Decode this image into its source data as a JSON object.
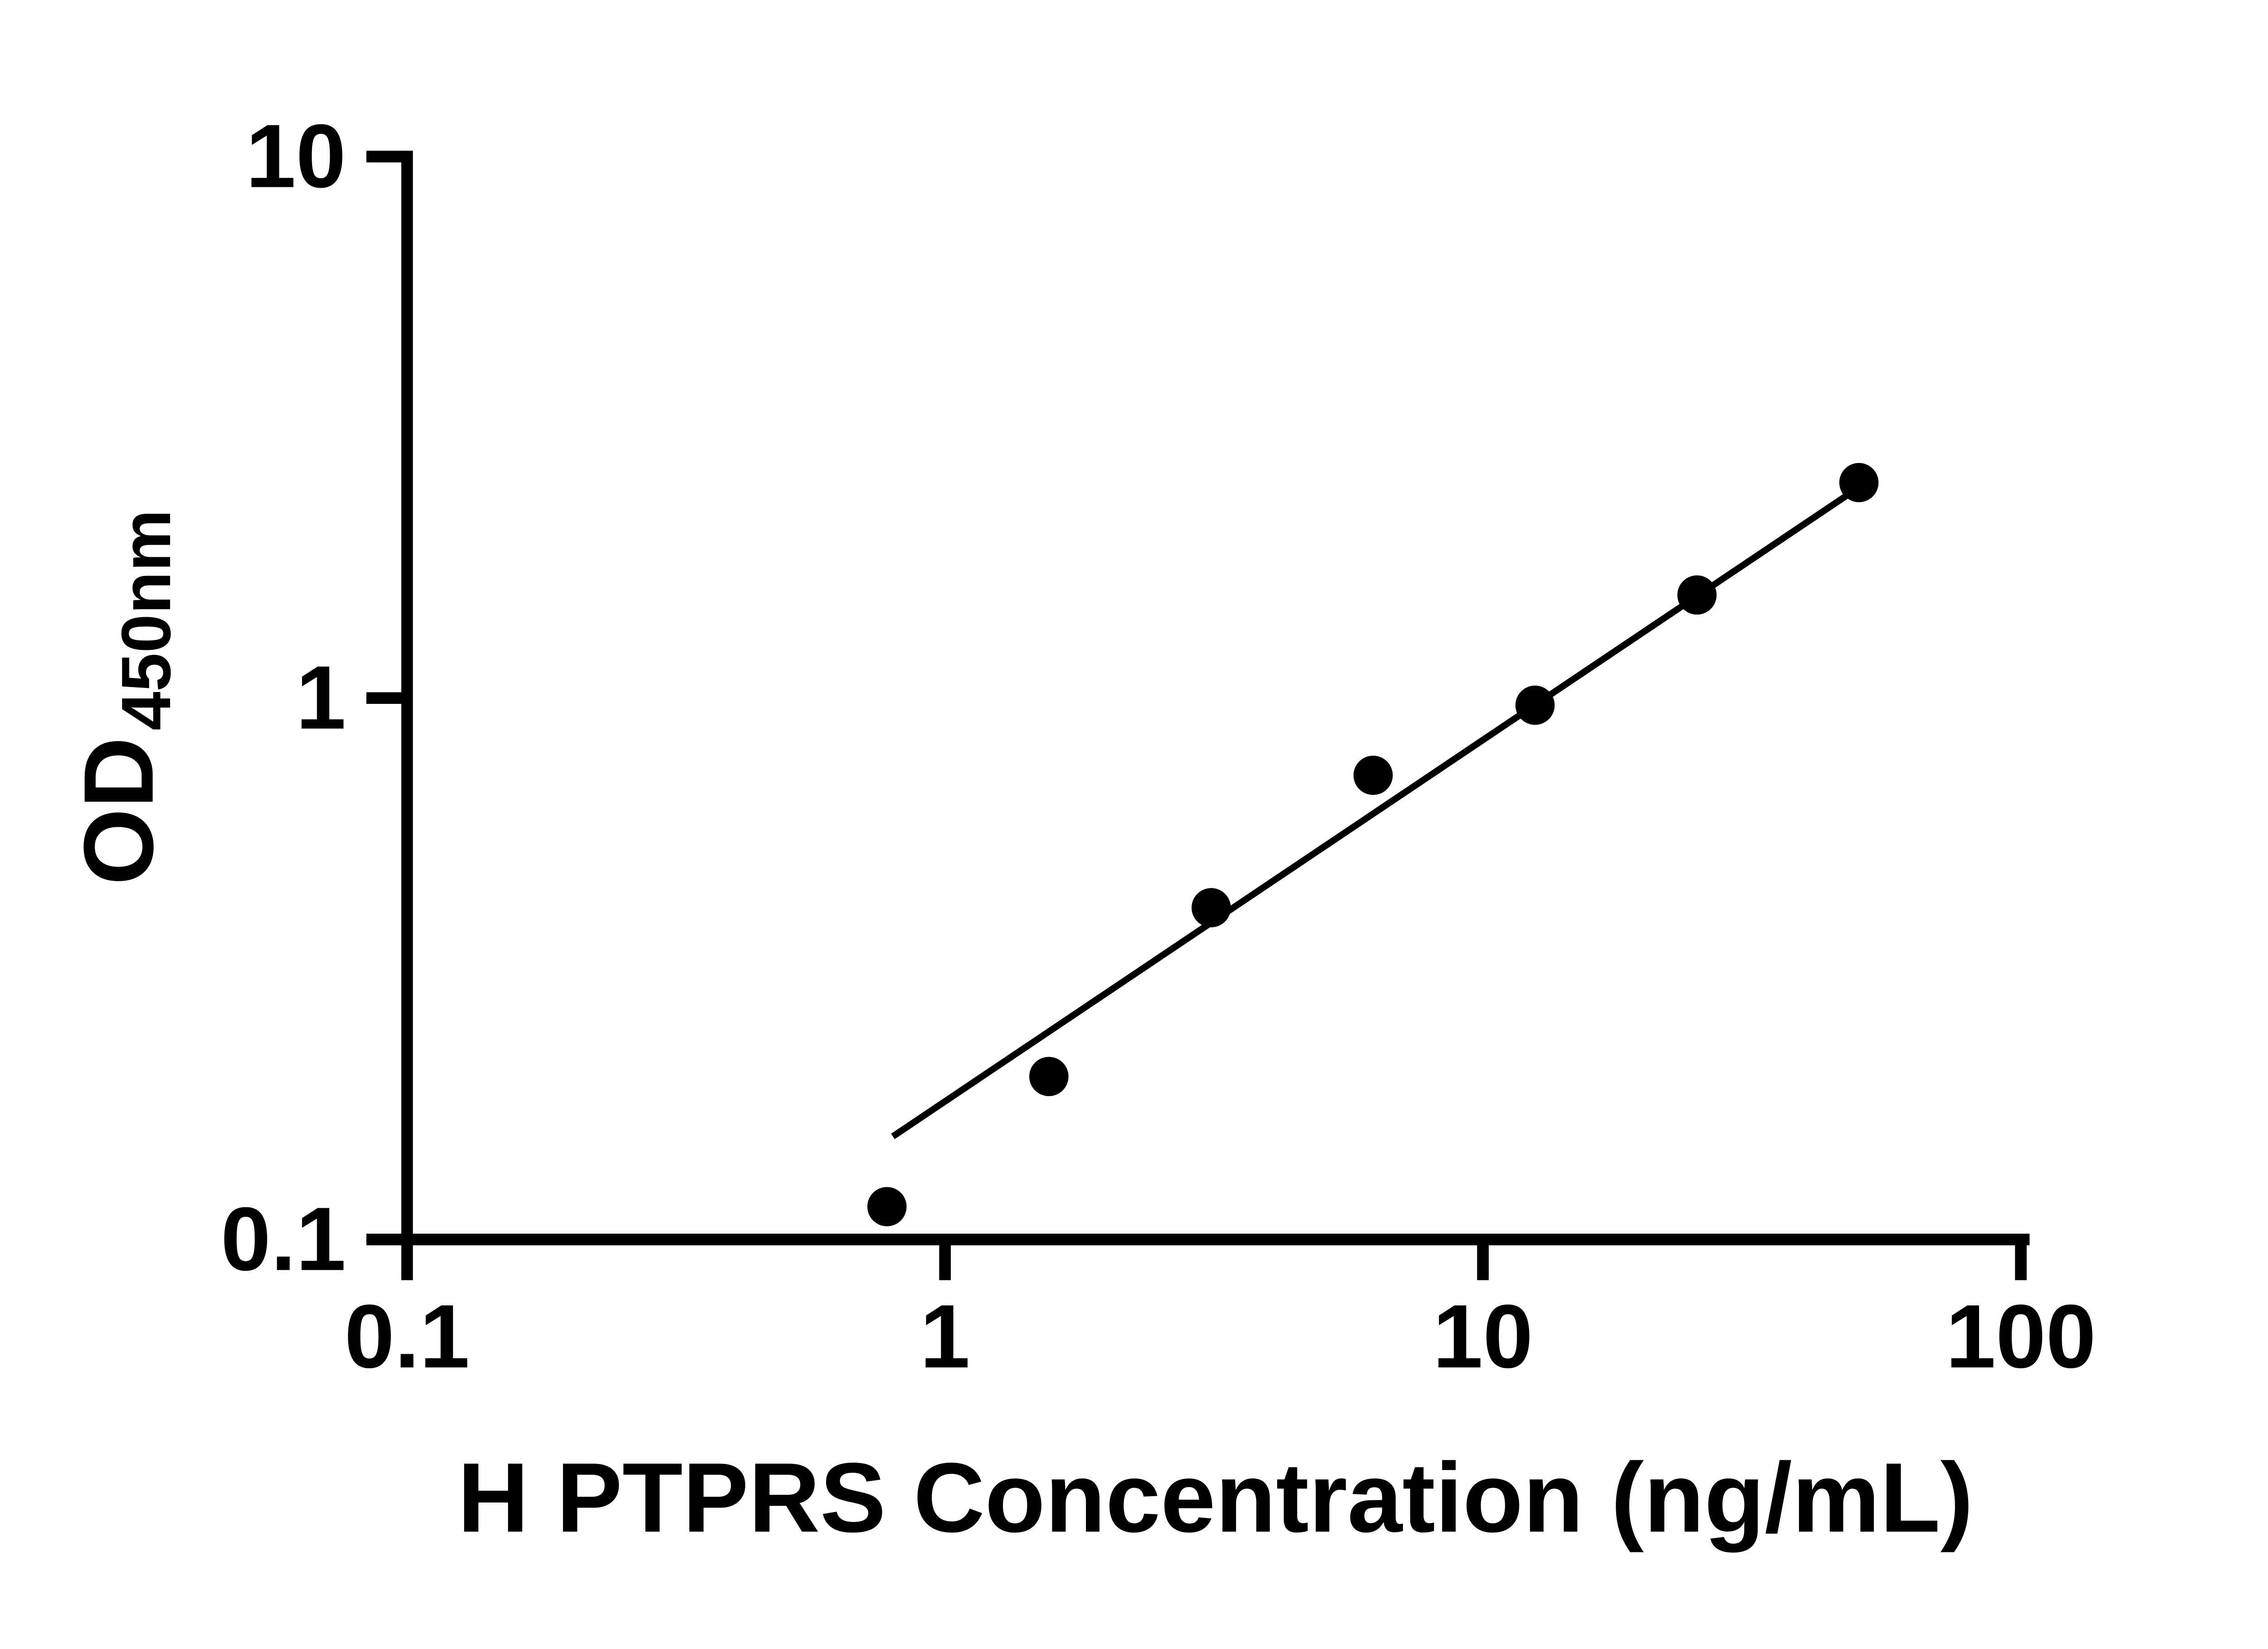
{
  "chart_data": {
    "type": "scatter",
    "title": "",
    "xlabel": "H PTPRS Concentration (ng/mL)",
    "ylabel_main": "OD",
    "ylabel_sub": "450nm",
    "xscale": "log",
    "yscale": "log",
    "xlim": [
      0.1,
      100
    ],
    "ylim": [
      0.1,
      10
    ],
    "x_ticks": [
      0.1,
      1,
      10,
      100
    ],
    "x_tick_labels": [
      "0.1",
      "1",
      "10",
      "100"
    ],
    "y_ticks": [
      0.1,
      1,
      10
    ],
    "y_tick_labels": [
      "0.1",
      "1",
      "10"
    ],
    "grid": "off",
    "legend": "none",
    "marker_color": "#000000",
    "line_color": "#000000",
    "points": [
      {
        "x": 0.78,
        "y": 0.115
      },
      {
        "x": 1.56,
        "y": 0.2
      },
      {
        "x": 3.125,
        "y": 0.41
      },
      {
        "x": 6.25,
        "y": 0.72
      },
      {
        "x": 12.5,
        "y": 0.97
      },
      {
        "x": 25,
        "y": 1.55
      },
      {
        "x": 50,
        "y": 2.5
      }
    ],
    "trendline": {
      "x1": 0.8,
      "y1": 0.155,
      "x2": 50,
      "y2": 2.45
    }
  }
}
